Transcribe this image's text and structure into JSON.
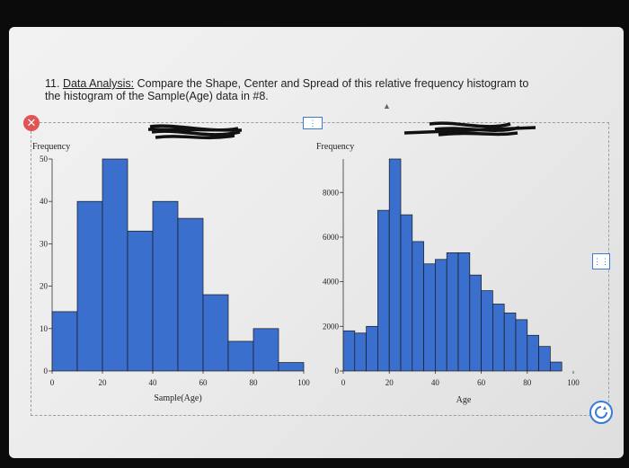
{
  "question": {
    "number": "11.",
    "title": "Data Analysis:",
    "text": "Compare the Shape, Center and Spread of this relative frequency histogram to",
    "text2": "the histogram of the Sample(Age) data in #8."
  },
  "icons": {
    "close": "close-icon",
    "handle": "drag-handle-icon",
    "rotate": "rotate-icon"
  },
  "colors": {
    "bar": "#3a6fce",
    "barStroke": "#1a1a1a",
    "accent": "#3a7bd5"
  },
  "chart_data": [
    {
      "type": "bar",
      "title": "",
      "ylabel": "Frequency",
      "xlabel": "Sample(Age)",
      "bin_edges": [
        0,
        10,
        20,
        30,
        40,
        50,
        60,
        70,
        80,
        90,
        100
      ],
      "values": [
        14,
        40,
        50,
        33,
        40,
        36,
        18,
        7,
        10,
        2
      ],
      "xlim": [
        0,
        100
      ],
      "ylim": [
        0,
        50
      ],
      "xticks": [
        "0",
        "20",
        "40",
        "60",
        "80",
        "100"
      ],
      "yticks": [
        "0",
        "10",
        "20",
        "30",
        "40",
        "50"
      ]
    },
    {
      "type": "bar",
      "title": "",
      "ylabel": "Frequency",
      "xlabel": "Age",
      "bin_edges": [
        0,
        5,
        10,
        15,
        20,
        25,
        30,
        35,
        40,
        45,
        50,
        55,
        60,
        65,
        70,
        75,
        80,
        85,
        90,
        95
      ],
      "values": [
        1800,
        1700,
        2000,
        7200,
        9500,
        7000,
        5800,
        4800,
        5000,
        5300,
        5300,
        4300,
        3600,
        3000,
        2600,
        2300,
        1600,
        1100,
        400
      ],
      "xlim": [
        0,
        100
      ],
      "ylim": [
        0,
        9500
      ],
      "xticks": [
        "0",
        "20",
        "40",
        "60",
        "80",
        "100"
      ],
      "yticks": [
        "0",
        "2000",
        "4000",
        "6000",
        "8000"
      ]
    }
  ]
}
